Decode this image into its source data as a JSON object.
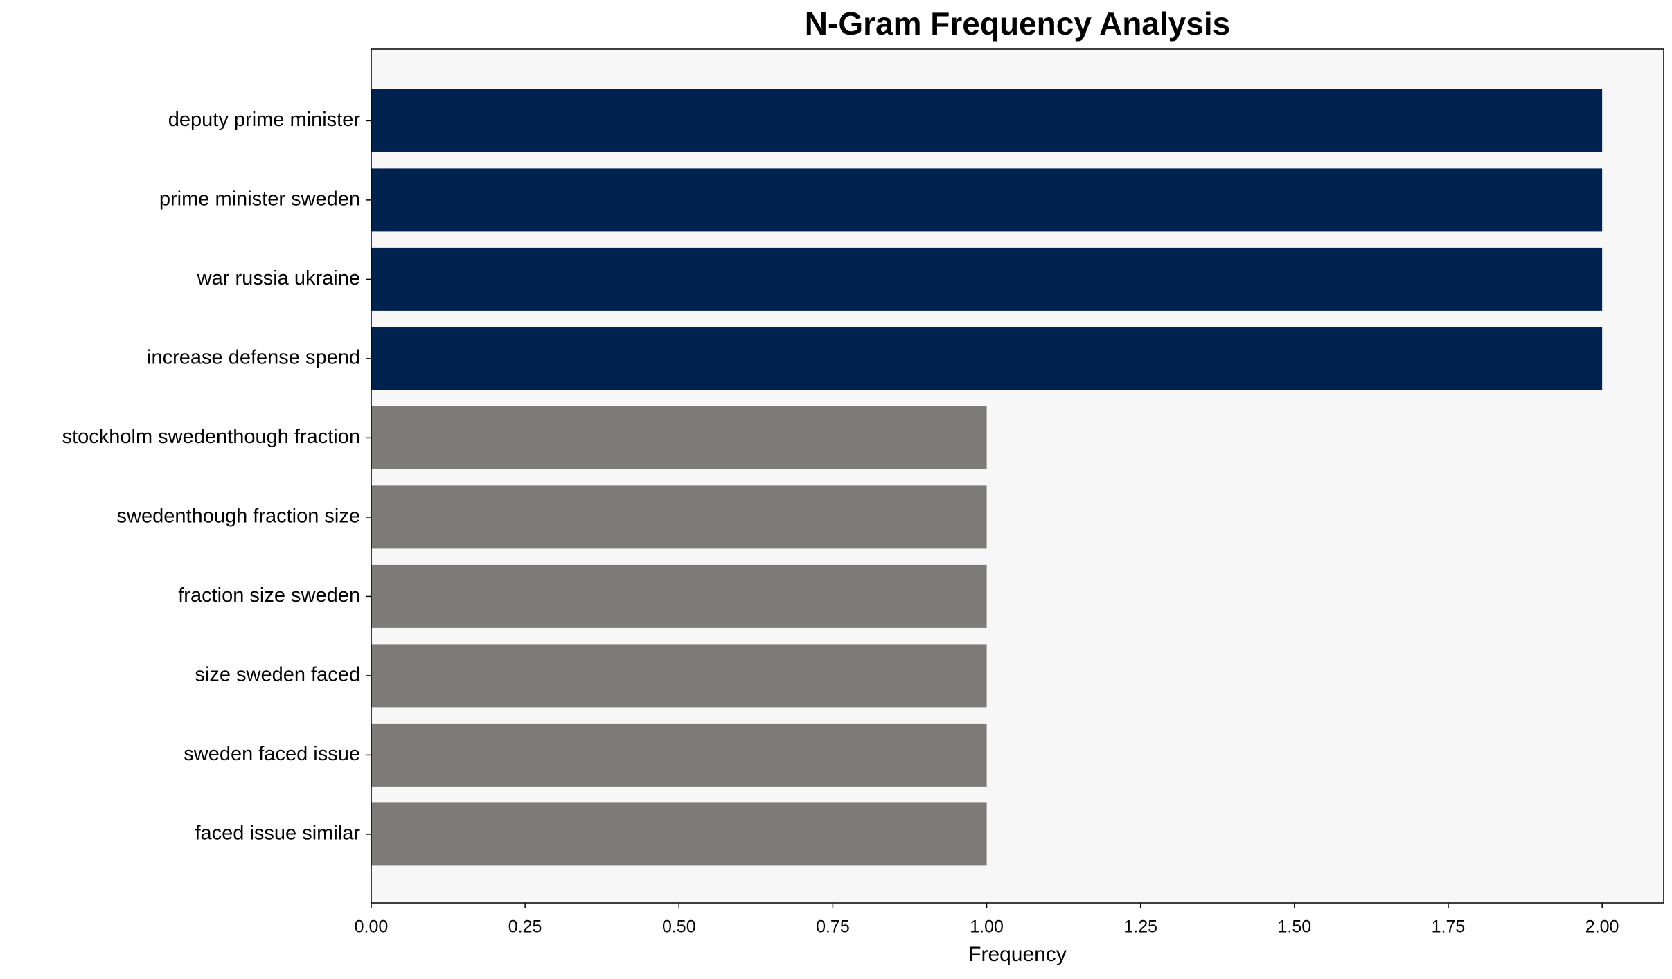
{
  "chart_data": {
    "type": "barh",
    "title": "N-Gram Frequency Analysis",
    "x_label": "Frequency",
    "categories": [
      "deputy prime minister",
      "prime minister sweden",
      "war russia ukraine",
      "increase defense spend",
      "stockholm swedenthough fraction",
      "swedenthough fraction size",
      "fraction size sweden",
      "size sweden faced",
      "sweden faced issue",
      "faced issue similar"
    ],
    "values": [
      2,
      2,
      2,
      2,
      1,
      1,
      1,
      1,
      1,
      1
    ],
    "colors": [
      "#00224e",
      "#00224e",
      "#00224e",
      "#00224e",
      "#7c7b78",
      "#7c7b78",
      "#7c7b78",
      "#7c7b78",
      "#7c7b78",
      "#7c7b78"
    ],
    "xlim": [
      0,
      2.1
    ],
    "xticks": [
      {
        "value": 0,
        "label": "0.00"
      },
      {
        "value": 0.25,
        "label": "0.25"
      },
      {
        "value": 0.5,
        "label": "0.50"
      },
      {
        "value": 0.75,
        "label": "0.75"
      },
      {
        "value": 1,
        "label": "1.00"
      },
      {
        "value": 1.25,
        "label": "1.25"
      },
      {
        "value": 1.5,
        "label": "1.50"
      },
      {
        "value": 1.75,
        "label": "1.75"
      },
      {
        "value": 2,
        "label": "2.00"
      }
    ]
  }
}
